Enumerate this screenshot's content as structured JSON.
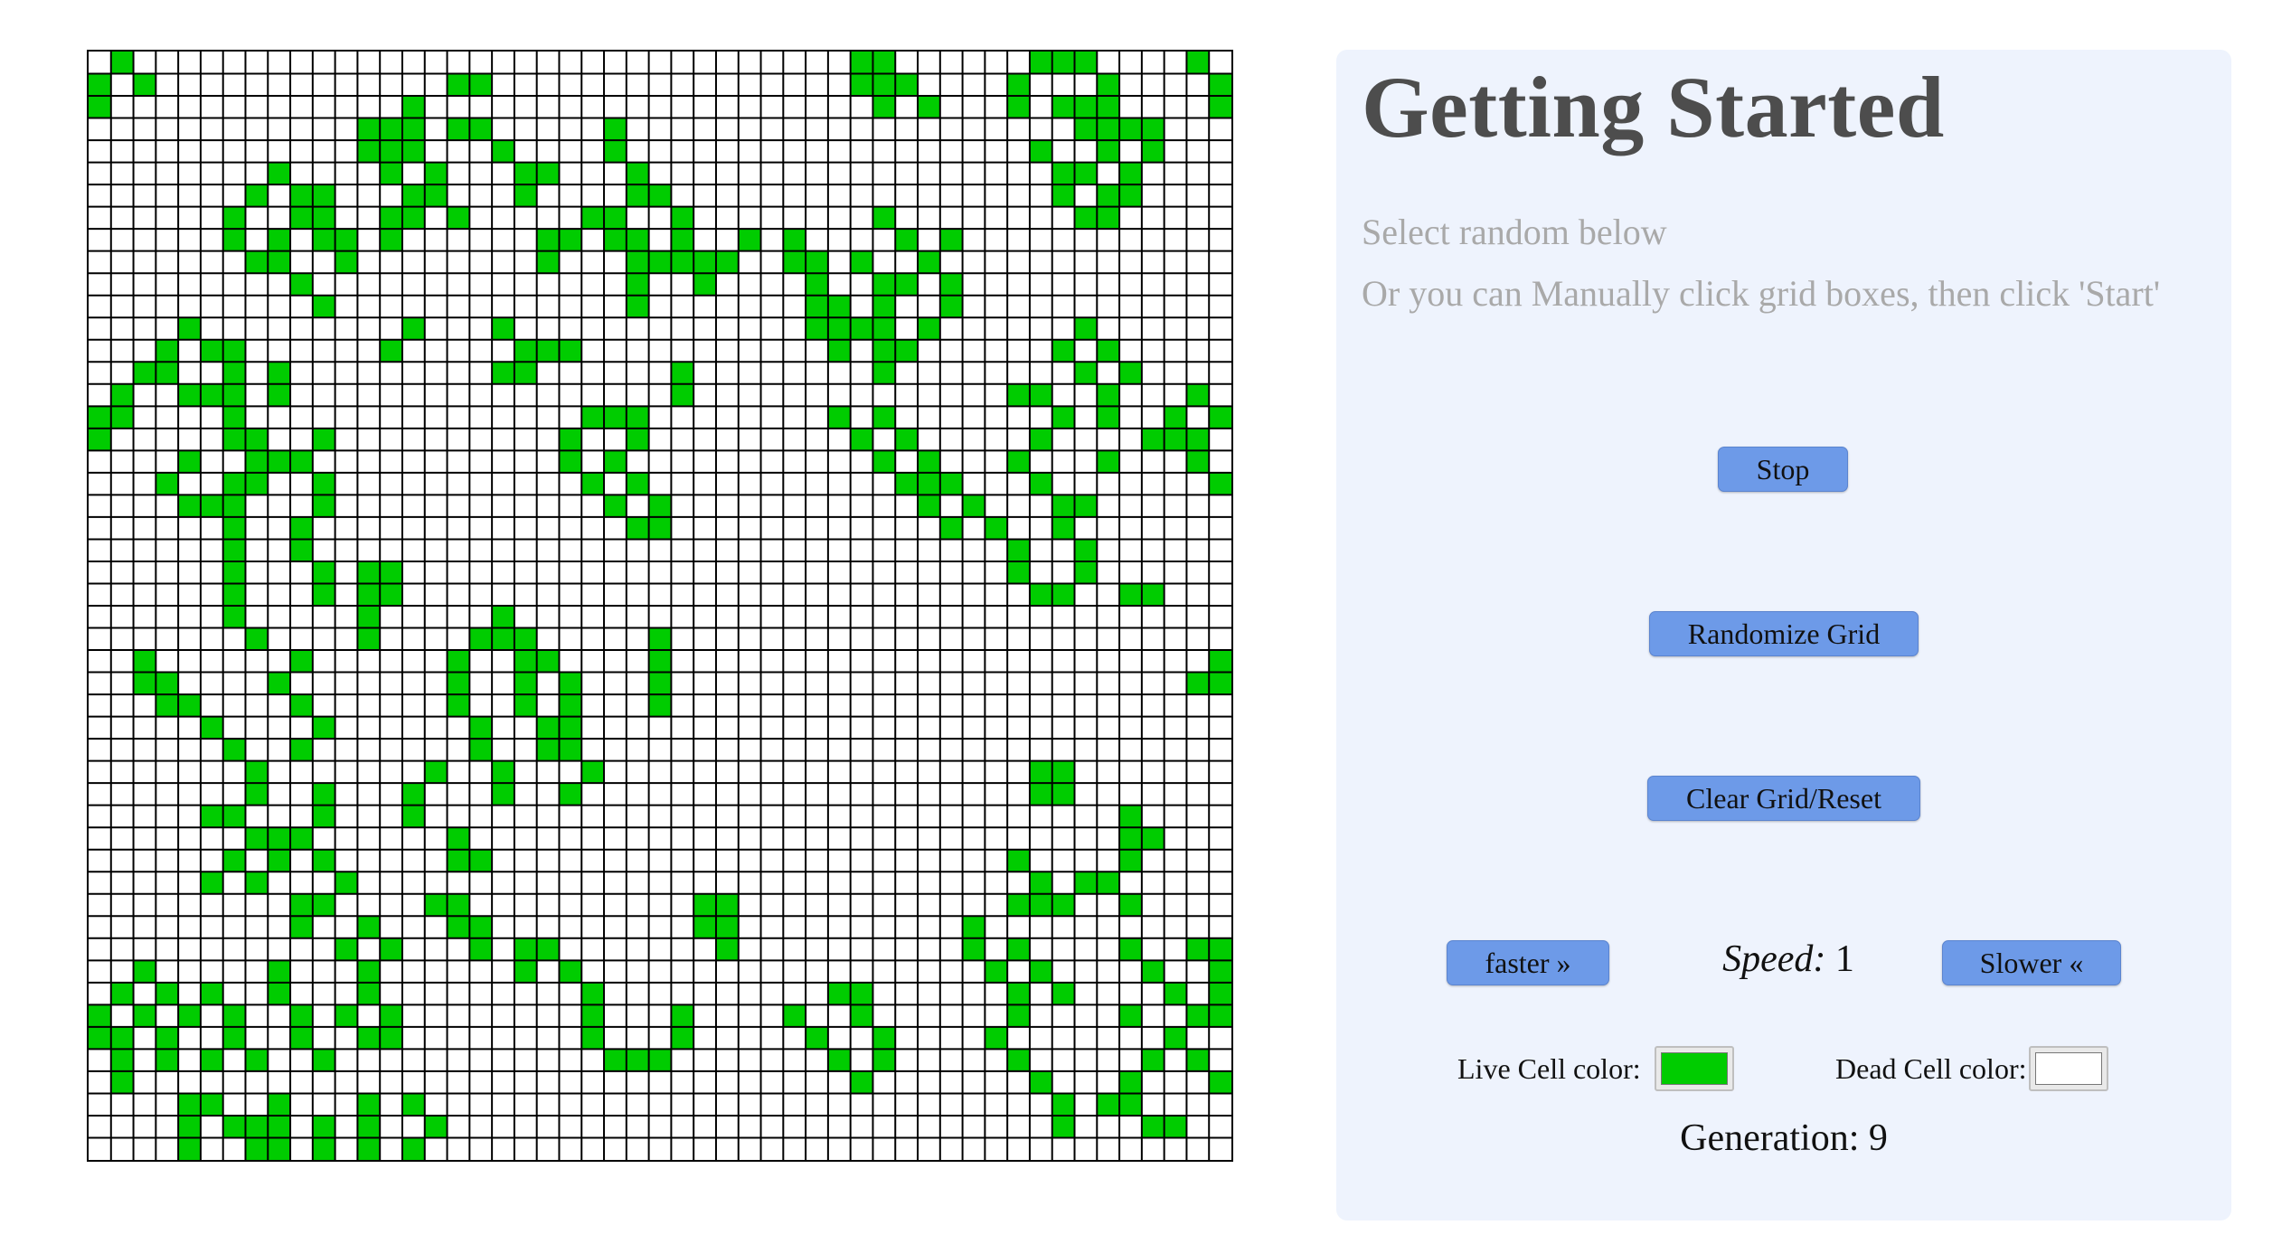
{
  "grid": {
    "rows": 50,
    "cols": 51,
    "live_color": "#00cc00",
    "dead_color": "#ffffff",
    "line_color": "#000000",
    "live_cells": [
      [
        0,
        1
      ],
      [
        1,
        0
      ],
      [
        1,
        2
      ],
      [
        2,
        0
      ],
      [
        0,
        34
      ],
      [
        0,
        35
      ],
      [
        1,
        34
      ],
      [
        1,
        35
      ],
      [
        1,
        36
      ],
      [
        2,
        35
      ],
      [
        2,
        37
      ],
      [
        0,
        42
      ],
      [
        0,
        43
      ],
      [
        0,
        44
      ],
      [
        1,
        41
      ],
      [
        1,
        45
      ],
      [
        2,
        41
      ],
      [
        2,
        43
      ],
      [
        2,
        45
      ],
      [
        0,
        49
      ],
      [
        1,
        50
      ],
      [
        2,
        50
      ],
      [
        1,
        16
      ],
      [
        1,
        17
      ],
      [
        2,
        14
      ],
      [
        3,
        12
      ],
      [
        3,
        13
      ],
      [
        3,
        14
      ],
      [
        3,
        16
      ],
      [
        3,
        17
      ],
      [
        4,
        12
      ],
      [
        4,
        13
      ],
      [
        4,
        18
      ],
      [
        3,
        23
      ],
      [
        4,
        23
      ],
      [
        5,
        19
      ],
      [
        5,
        20
      ],
      [
        5,
        24
      ],
      [
        6,
        19
      ],
      [
        6,
        24
      ],
      [
        6,
        25
      ],
      [
        4,
        14
      ],
      [
        5,
        13
      ],
      [
        5,
        15
      ],
      [
        6,
        14
      ],
      [
        6,
        15
      ],
      [
        7,
        13
      ],
      [
        7,
        14
      ],
      [
        7,
        16
      ],
      [
        8,
        13
      ],
      [
        5,
        8
      ],
      [
        6,
        7
      ],
      [
        6,
        9
      ],
      [
        7,
        6
      ],
      [
        7,
        9
      ],
      [
        8,
        6
      ],
      [
        8,
        8
      ],
      [
        9,
        7
      ],
      [
        9,
        8
      ],
      [
        6,
        10
      ],
      [
        7,
        10
      ],
      [
        8,
        10
      ],
      [
        8,
        11
      ],
      [
        9,
        11
      ],
      [
        7,
        22
      ],
      [
        7,
        23
      ],
      [
        8,
        20
      ],
      [
        8,
        21
      ],
      [
        8,
        23
      ],
      [
        8,
        24
      ],
      [
        9,
        20
      ],
      [
        9,
        24
      ],
      [
        7,
        26
      ],
      [
        8,
        26
      ],
      [
        9,
        25
      ],
      [
        9,
        26
      ],
      [
        10,
        24
      ],
      [
        10,
        27
      ],
      [
        11,
        24
      ],
      [
        8,
        29
      ],
      [
        9,
        27
      ],
      [
        9,
        28
      ],
      [
        8,
        31
      ],
      [
        9,
        31
      ],
      [
        9,
        32
      ],
      [
        10,
        32
      ],
      [
        11,
        32
      ],
      [
        11,
        33
      ],
      [
        12,
        32
      ],
      [
        12,
        33
      ],
      [
        13,
        33
      ],
      [
        7,
        35
      ],
      [
        8,
        36
      ],
      [
        9,
        34
      ],
      [
        9,
        37
      ],
      [
        10,
        35
      ],
      [
        10,
        36
      ],
      [
        11,
        35
      ],
      [
        12,
        34
      ],
      [
        12,
        35
      ],
      [
        13,
        35
      ],
      [
        8,
        38
      ],
      [
        9,
        37
      ],
      [
        10,
        38
      ],
      [
        11,
        38
      ],
      [
        12,
        37
      ],
      [
        13,
        36
      ],
      [
        14,
        35
      ],
      [
        2,
        44
      ],
      [
        3,
        44
      ],
      [
        3,
        46
      ],
      [
        4,
        42
      ],
      [
        4,
        45
      ],
      [
        4,
        47
      ],
      [
        5,
        43
      ],
      [
        5,
        44
      ],
      [
        5,
        46
      ],
      [
        6,
        43
      ],
      [
        6,
        45
      ],
      [
        6,
        46
      ],
      [
        7,
        44
      ],
      [
        7,
        45
      ],
      [
        3,
        47
      ],
      [
        4,
        47
      ],
      [
        3,
        45
      ],
      [
        10,
        9
      ],
      [
        11,
        10
      ],
      [
        12,
        14
      ],
      [
        13,
        13
      ],
      [
        12,
        18
      ],
      [
        13,
        19
      ],
      [
        14,
        18
      ],
      [
        13,
        20
      ],
      [
        13,
        21
      ],
      [
        14,
        19
      ],
      [
        12,
        4
      ],
      [
        13,
        3
      ],
      [
        13,
        5
      ],
      [
        14,
        2
      ],
      [
        14,
        3
      ],
      [
        15,
        1
      ],
      [
        15,
        4
      ],
      [
        15,
        5
      ],
      [
        16,
        0
      ],
      [
        16,
        1
      ],
      [
        17,
        0
      ],
      [
        13,
        6
      ],
      [
        14,
        6
      ],
      [
        15,
        6
      ],
      [
        16,
        6
      ],
      [
        17,
        6
      ],
      [
        18,
        4
      ],
      [
        18,
        7
      ],
      [
        19,
        3
      ],
      [
        19,
        6
      ],
      [
        20,
        4
      ],
      [
        20,
        5
      ],
      [
        14,
        8
      ],
      [
        15,
        8
      ],
      [
        16,
        6
      ],
      [
        17,
        7
      ],
      [
        18,
        8
      ],
      [
        19,
        7
      ],
      [
        14,
        26
      ],
      [
        15,
        26
      ],
      [
        16,
        22
      ],
      [
        16,
        23
      ],
      [
        16,
        24
      ],
      [
        17,
        21
      ],
      [
        17,
        24
      ],
      [
        18,
        21
      ],
      [
        18,
        23
      ],
      [
        19,
        22
      ],
      [
        19,
        24
      ],
      [
        20,
        23
      ],
      [
        20,
        25
      ],
      [
        21,
        24
      ],
      [
        21,
        25
      ],
      [
        12,
        44
      ],
      [
        13,
        43
      ],
      [
        13,
        45
      ],
      [
        14,
        44
      ],
      [
        14,
        46
      ],
      [
        15,
        45
      ],
      [
        16,
        45
      ],
      [
        17,
        47
      ],
      [
        17,
        48
      ],
      [
        16,
        48
      ],
      [
        15,
        49
      ],
      [
        16,
        50
      ],
      [
        17,
        49
      ],
      [
        18,
        49
      ],
      [
        19,
        50
      ],
      [
        15,
        41
      ],
      [
        15,
        42
      ],
      [
        16,
        43
      ],
      [
        17,
        42
      ],
      [
        18,
        45
      ],
      [
        19,
        42
      ],
      [
        20,
        44
      ],
      [
        16,
        35
      ],
      [
        17,
        36
      ],
      [
        18,
        37
      ],
      [
        19,
        37
      ],
      [
        19,
        38
      ],
      [
        20,
        39
      ],
      [
        21,
        40
      ],
      [
        22,
        41
      ],
      [
        23,
        41
      ],
      [
        24,
        42
      ],
      [
        24,
        43
      ],
      [
        16,
        33
      ],
      [
        17,
        34
      ],
      [
        18,
        35
      ],
      [
        19,
        36
      ],
      [
        20,
        37
      ],
      [
        21,
        38
      ],
      [
        18,
        41
      ],
      [
        19,
        42
      ],
      [
        20,
        43
      ],
      [
        21,
        43
      ],
      [
        22,
        44
      ],
      [
        23,
        44
      ],
      [
        24,
        46
      ],
      [
        24,
        47
      ],
      [
        17,
        10
      ],
      [
        18,
        9
      ],
      [
        19,
        10
      ],
      [
        20,
        10
      ],
      [
        21,
        9
      ],
      [
        22,
        9
      ],
      [
        23,
        10
      ],
      [
        24,
        10
      ],
      [
        20,
        6
      ],
      [
        21,
        6
      ],
      [
        22,
        6
      ],
      [
        23,
        6
      ],
      [
        24,
        6
      ],
      [
        25,
        6
      ],
      [
        26,
        7
      ],
      [
        23,
        12
      ],
      [
        23,
        13
      ],
      [
        24,
        12
      ],
      [
        24,
        13
      ],
      [
        25,
        12
      ],
      [
        26,
        12
      ],
      [
        25,
        18
      ],
      [
        26,
        17
      ],
      [
        26,
        18
      ],
      [
        27,
        19
      ],
      [
        28,
        19
      ],
      [
        29,
        19
      ],
      [
        30,
        20
      ],
      [
        31,
        20
      ],
      [
        26,
        19
      ],
      [
        27,
        20
      ],
      [
        28,
        21
      ],
      [
        29,
        21
      ],
      [
        30,
        21
      ],
      [
        31,
        21
      ],
      [
        32,
        22
      ],
      [
        33,
        21
      ],
      [
        27,
        16
      ],
      [
        28,
        16
      ],
      [
        29,
        16
      ],
      [
        30,
        17
      ],
      [
        31,
        17
      ],
      [
        32,
        18
      ],
      [
        33,
        18
      ],
      [
        27,
        2
      ],
      [
        28,
        2
      ],
      [
        28,
        3
      ],
      [
        29,
        3
      ],
      [
        29,
        4
      ],
      [
        30,
        5
      ],
      [
        31,
        6
      ],
      [
        32,
        7
      ],
      [
        33,
        7
      ],
      [
        27,
        9
      ],
      [
        28,
        8
      ],
      [
        29,
        9
      ],
      [
        30,
        10
      ],
      [
        31,
        9
      ],
      [
        26,
        25
      ],
      [
        27,
        25
      ],
      [
        28,
        25
      ],
      [
        29,
        25
      ],
      [
        27,
        50
      ],
      [
        28,
        49
      ],
      [
        28,
        50
      ],
      [
        32,
        42
      ],
      [
        32,
        43
      ],
      [
        33,
        42
      ],
      [
        33,
        43
      ],
      [
        34,
        46
      ],
      [
        35,
        46
      ],
      [
        35,
        47
      ],
      [
        36,
        46
      ],
      [
        37,
        44
      ],
      [
        37,
        45
      ],
      [
        38,
        43
      ],
      [
        38,
        46
      ],
      [
        36,
        41
      ],
      [
        37,
        42
      ],
      [
        38,
        41
      ],
      [
        38,
        42
      ],
      [
        32,
        15
      ],
      [
        33,
        14
      ],
      [
        34,
        14
      ],
      [
        35,
        16
      ],
      [
        36,
        16
      ],
      [
        36,
        17
      ],
      [
        33,
        10
      ],
      [
        34,
        10
      ],
      [
        35,
        9
      ],
      [
        36,
        10
      ],
      [
        37,
        11
      ],
      [
        34,
        5
      ],
      [
        34,
        6
      ],
      [
        35,
        7
      ],
      [
        35,
        8
      ],
      [
        36,
        6
      ],
      [
        36,
        8
      ],
      [
        37,
        5
      ],
      [
        37,
        7
      ],
      [
        38,
        9
      ],
      [
        38,
        10
      ],
      [
        39,
        9
      ],
      [
        39,
        12
      ],
      [
        40,
        13
      ],
      [
        41,
        12
      ],
      [
        40,
        11
      ],
      [
        38,
        15
      ],
      [
        38,
        16
      ],
      [
        39,
        16
      ],
      [
        39,
        17
      ],
      [
        40,
        17
      ],
      [
        40,
        19
      ],
      [
        40,
        20
      ],
      [
        41,
        19
      ],
      [
        41,
        21
      ],
      [
        38,
        27
      ],
      [
        38,
        28
      ],
      [
        39,
        27
      ],
      [
        39,
        28
      ],
      [
        40,
        28
      ],
      [
        39,
        39
      ],
      [
        40,
        39
      ],
      [
        40,
        41
      ],
      [
        41,
        40
      ],
      [
        41,
        42
      ],
      [
        42,
        41
      ],
      [
        42,
        43
      ],
      [
        40,
        46
      ],
      [
        41,
        47
      ],
      [
        42,
        48
      ],
      [
        43,
        46
      ],
      [
        44,
        48
      ],
      [
        45,
        49
      ],
      [
        46,
        50
      ],
      [
        40,
        49
      ],
      [
        40,
        50
      ],
      [
        41,
        50
      ],
      [
        42,
        50
      ],
      [
        43,
        49
      ],
      [
        43,
        50
      ],
      [
        41,
        2
      ],
      [
        42,
        1
      ],
      [
        42,
        3
      ],
      [
        43,
        0
      ],
      [
        43,
        2
      ],
      [
        44,
        0
      ],
      [
        44,
        1
      ],
      [
        44,
        3
      ],
      [
        45,
        1
      ],
      [
        45,
        3
      ],
      [
        46,
        1
      ],
      [
        42,
        5
      ],
      [
        43,
        4
      ],
      [
        43,
        6
      ],
      [
        44,
        6
      ],
      [
        45,
        5
      ],
      [
        45,
        7
      ],
      [
        41,
        8
      ],
      [
        42,
        8
      ],
      [
        43,
        9
      ],
      [
        44,
        9
      ],
      [
        45,
        10
      ],
      [
        42,
        12
      ],
      [
        43,
        11
      ],
      [
        43,
        13
      ],
      [
        44,
        12
      ],
      [
        44,
        13
      ],
      [
        42,
        22
      ],
      [
        43,
        22
      ],
      [
        44,
        22
      ],
      [
        45,
        23
      ],
      [
        45,
        25
      ],
      [
        43,
        26
      ],
      [
        44,
        26
      ],
      [
        45,
        24
      ],
      [
        42,
        33
      ],
      [
        42,
        34
      ],
      [
        43,
        31
      ],
      [
        43,
        34
      ],
      [
        44,
        32
      ],
      [
        44,
        35
      ],
      [
        45,
        33
      ],
      [
        45,
        35
      ],
      [
        46,
        34
      ],
      [
        42,
        41
      ],
      [
        43,
        41
      ],
      [
        44,
        40
      ],
      [
        45,
        41
      ],
      [
        46,
        42
      ],
      [
        47,
        43
      ],
      [
        48,
        43
      ],
      [
        45,
        47
      ],
      [
        46,
        46
      ],
      [
        47,
        45
      ],
      [
        47,
        46
      ],
      [
        48,
        47
      ],
      [
        48,
        48
      ],
      [
        47,
        4
      ],
      [
        47,
        5
      ],
      [
        48,
        4
      ],
      [
        48,
        6
      ],
      [
        48,
        7
      ],
      [
        49,
        4
      ],
      [
        49,
        7
      ],
      [
        47,
        8
      ],
      [
        48,
        8
      ],
      [
        49,
        8
      ],
      [
        48,
        10
      ],
      [
        49,
        10
      ],
      [
        47,
        12
      ],
      [
        48,
        12
      ],
      [
        49,
        12
      ],
      [
        47,
        14
      ],
      [
        48,
        15
      ],
      [
        49,
        14
      ]
    ]
  },
  "panel": {
    "title": "Getting Started",
    "subtitle1": "Select random below",
    "subtitle2": "Or you can Manually click grid boxes, then click 'Start'",
    "stop_label": "Stop",
    "randomize_label": "Randomize Grid",
    "clear_label": "Clear Grid/Reset",
    "faster_label": "faster »",
    "slower_label": "Slower «",
    "speed_label": "Speed:",
    "speed_value": "1",
    "live_color_label": "Live Cell color:",
    "dead_color_label": "Dead Cell color:",
    "live_color": "#00cc00",
    "dead_color": "#ffffff",
    "generation_label": "Generation:",
    "generation_value": "9"
  }
}
